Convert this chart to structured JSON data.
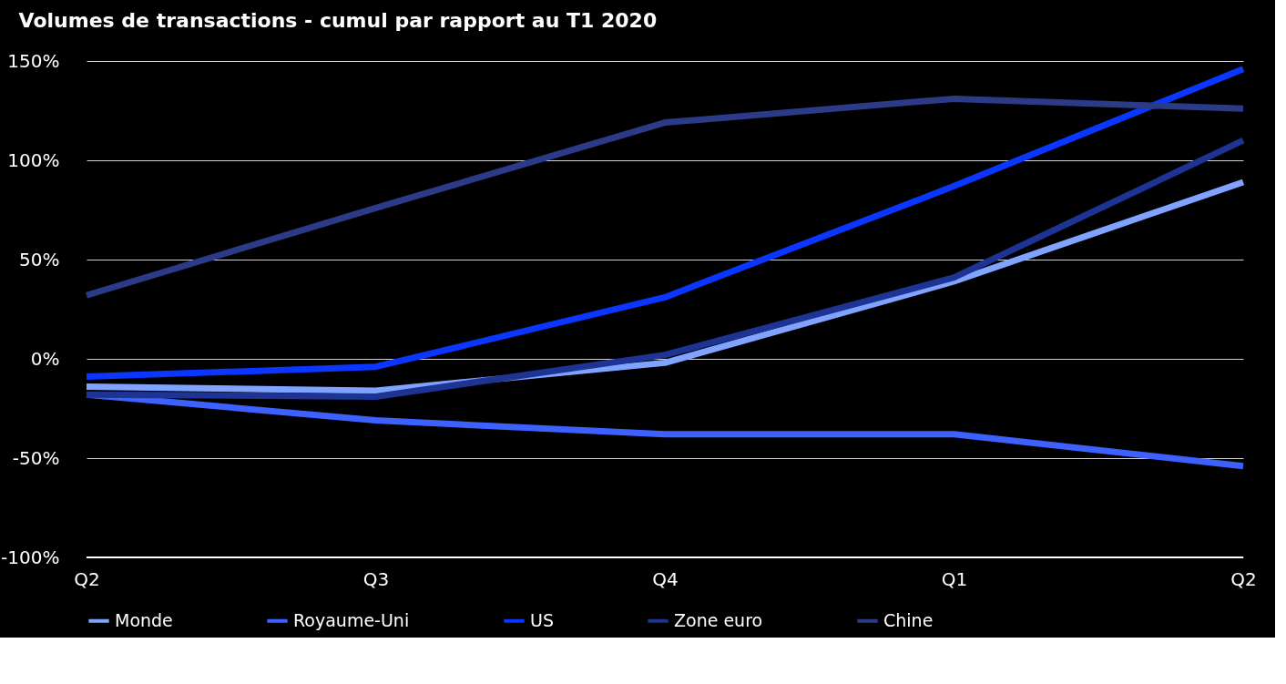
{
  "chart_data": {
    "type": "line",
    "title": "Volumes de transactions - cumul par rapport au T1 2020",
    "categories": [
      "Q2",
      "Q3",
      "Q4",
      "Q1",
      "Q2"
    ],
    "series": [
      {
        "name": "Monde",
        "color": "#80a3ff",
        "values": [
          -14,
          -16,
          -2,
          39,
          89
        ]
      },
      {
        "name": "Royaume-Uni",
        "color": "#3d61ff",
        "values": [
          -18,
          -31,
          -38,
          -38,
          -54
        ]
      },
      {
        "name": "US",
        "color": "#0a36ff",
        "values": [
          -9,
          -4,
          31,
          87,
          146
        ]
      },
      {
        "name": "Zone euro",
        "color": "#1d3494",
        "values": [
          -18,
          -19,
          2,
          41,
          110
        ]
      },
      {
        "name": "Chine",
        "color": "#2c3b88",
        "values": [
          32,
          76,
          119,
          131,
          126
        ]
      }
    ],
    "ylim": [
      -100,
      150
    ],
    "yticks": [
      {
        "value": -100,
        "label": "-100%"
      },
      {
        "value": -50,
        "label": "-50%"
      },
      {
        "value": 0,
        "label": "0%"
      },
      {
        "value": 50,
        "label": "50%"
      },
      {
        "value": 100,
        "label": "100%"
      },
      {
        "value": 150,
        "label": "150%"
      }
    ],
    "grid": "y",
    "legend": "bottom",
    "marker": "none",
    "line_style": "solid"
  }
}
